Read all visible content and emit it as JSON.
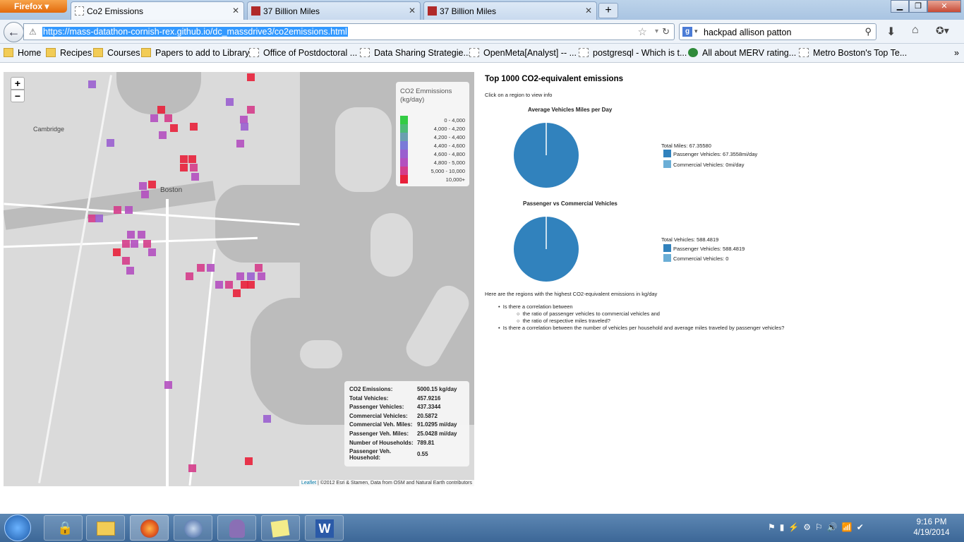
{
  "browser": {
    "menu_label": "Firefox",
    "tabs": [
      {
        "label": "Co2 Emissions",
        "active": true
      },
      {
        "label": "37 Billion Miles",
        "active": false
      },
      {
        "label": "37 Billion Miles",
        "active": false
      }
    ],
    "new_tab": "+",
    "url": "https://mass-datathon-cornish-rex.github.io/dc_massdrive3/co2emissions.html",
    "search_value": "hackpad allison patton",
    "bookmarks": [
      {
        "label": "Home",
        "kind": "folder"
      },
      {
        "label": "Recipes",
        "kind": "folder"
      },
      {
        "label": "Courses",
        "kind": "folder"
      },
      {
        "label": "Papers to add to Library",
        "kind": "folder"
      },
      {
        "label": "Office of Postdoctoral ...",
        "kind": "page"
      },
      {
        "label": "Data Sharing Strategie...",
        "kind": "page"
      },
      {
        "label": "OpenMeta[Analyst] -- ...",
        "kind": "page"
      },
      {
        "label": "postgresql - Which is t...",
        "kind": "page"
      },
      {
        "label": "All about MERV rating...",
        "kind": "page"
      },
      {
        "label": "Metro Boston's Top Te...",
        "kind": "page"
      }
    ]
  },
  "map": {
    "zoom_in": "+",
    "zoom_out": "−",
    "place_labels": [
      "Cambridge",
      "Boston"
    ],
    "legend": {
      "title_line1": "CO2 Emmissions",
      "title_line2": "(kg/day)",
      "bins": [
        {
          "label": "0 - 4,000",
          "color": "#33cc44"
        },
        {
          "label": "4,000 - 4,200",
          "color": "#4dbb77"
        },
        {
          "label": "4,200 - 4,400",
          "color": "#6a9fb0"
        },
        {
          "label": "4,400 - 4,600",
          "color": "#7a7ad8"
        },
        {
          "label": "4,600 - 4,800",
          "color": "#9a5fcf"
        },
        {
          "label": "4,800 - 5,000",
          "color": "#b34fbf"
        },
        {
          "label": "5,000 - 10,000",
          "color": "#d43c8a"
        },
        {
          "label": "10,000+",
          "color": "#e8203a"
        }
      ]
    },
    "info": [
      {
        "key": "CO2 Emissions:",
        "value": "5000.15 kg/day"
      },
      {
        "key": "Total Vehicles:",
        "value": "457.9216"
      },
      {
        "key": "Passenger Vehicles:",
        "value": "437.3344"
      },
      {
        "key": "Commercial Vehicles:",
        "value": "20.5872"
      },
      {
        "key": "Commercial Veh. Miles:",
        "value": "91.0295 mi/day"
      },
      {
        "key": "Passenger Veh. Miles:",
        "value": "25.0428 mi/day"
      },
      {
        "key": "Number of Households:",
        "value": "789.81"
      },
      {
        "key": "Passenger Veh. Household:",
        "value": "0.55"
      }
    ],
    "attribution_link": "Leaflet",
    "attribution_text": " | ©2012 Esri & Stamen, Data from OSM and Natural Earth contributors"
  },
  "panel": {
    "title": "Top 1000 CO2-equivalent emissions",
    "hint": "Click on a region to view info",
    "pie1": {
      "title": "Average Vehicles Miles per Day",
      "total": "Total Miles: 67.35580",
      "legend": [
        {
          "label": "Passenger Vehicles: 67.3558mi/day",
          "color": "#3182bd"
        },
        {
          "label": "Commercial Vehicles: 0mi/day",
          "color": "#6baed6"
        }
      ]
    },
    "pie2": {
      "title": "Passenger vs Commercial Vehicles",
      "total": "Total Vehicles: 588.4819",
      "legend": [
        {
          "label": "Passenger Vehicles: 588.4819",
          "color": "#3182bd"
        },
        {
          "label": "Commercial Vehicles: 0",
          "color": "#6baed6"
        }
      ]
    },
    "regions_text": "Here are the regions with the highest CO2-equivalent emissions in kg/day",
    "q1": "Is there a correlation between",
    "q1a": "the ratio of passenger vehicles to commercial vehicles and",
    "q1b": "the ratio of respective miles traveled?",
    "q2": "Is there a correlation between the number of vehicles per household and average miles traveled by passenger vehicles?"
  },
  "taskbar": {
    "time": "9:16 PM",
    "date": "4/19/2014"
  }
}
